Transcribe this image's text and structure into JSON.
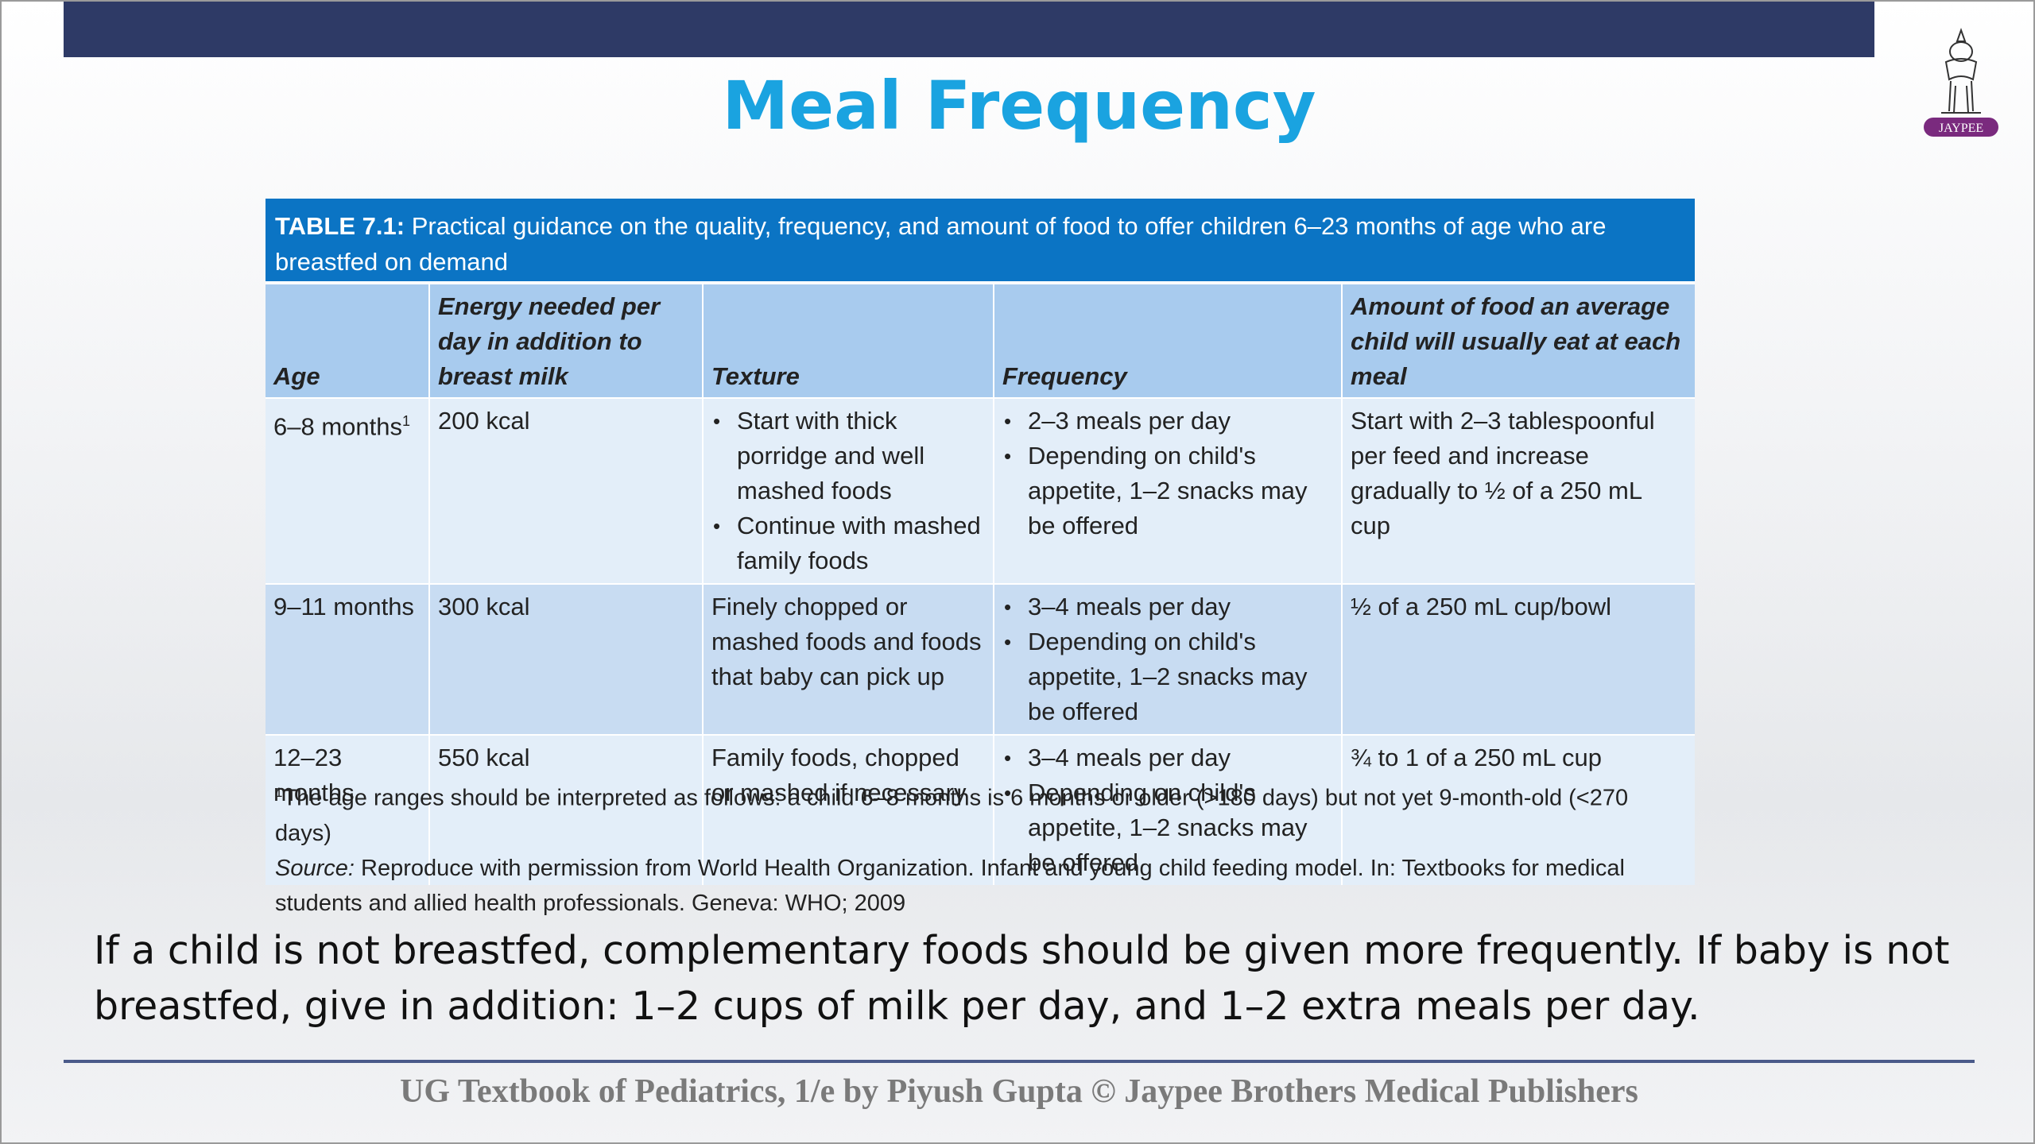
{
  "slide": {
    "title": "Meal Frequency",
    "logo_text": "JAYPEE",
    "note": "If a child is not breastfed, complementary foods should be given more frequently. If baby is not breastfed, give in addition: 1–2 cups of milk per day, and 1–2 extra meals per day.",
    "footer": "UG Textbook of Pediatrics, 1/e by Piyush Gupta © Jaypee Brothers Medical Publishers"
  },
  "colors": {
    "top_bar": "#2e3a66",
    "title": "#1aa3e0",
    "caption_bg": "#0b74c4",
    "header_bg": "#a8cbee"
  },
  "table": {
    "caption_label": "TABLE 7.1:",
    "caption_text": "Practical guidance on the quality, frequency, and amount of food to offer children 6–23 months of age who are breastfed on demand",
    "headers": {
      "age": "Age",
      "energy": "Energy needed per day in addition to breast milk",
      "texture": "Texture",
      "frequency": "Frequency",
      "amount": "Amount of food an average child will usually eat at each meal"
    },
    "rows": [
      {
        "age": "6–8 months",
        "age_sup": "1",
        "energy": "200 kcal",
        "texture": [
          "Start with thick porridge and well mashed foods",
          "Continue with mashed family foods"
        ],
        "frequency": [
          "2–3 meals per day",
          "Depending on child's appetite, 1–2 snacks may be offered"
        ],
        "amount": "Start with 2–3 tablespoonful per feed and increase gradually to ½ of a 250 mL cup"
      },
      {
        "age": "9–11 months",
        "energy": "300 kcal",
        "texture": "Finely chopped or mashed foods and foods that baby can pick up",
        "frequency": [
          "3–4 meals per day",
          "Depending on child's appetite, 1–2 snacks may be offered"
        ],
        "amount": "½ of a 250 mL cup/bowl"
      },
      {
        "age": "12–23 months",
        "energy": "550 kcal",
        "texture": "Family foods, chopped or mashed if necessary",
        "frequency": [
          "3–4 meals per day",
          "Depending on child's appetite, 1–2 snacks may be offered"
        ],
        "amount": "¾ to 1 of a 250 mL cup"
      }
    ],
    "footnote_sup": "1",
    "footnote": "The age ranges should be interpreted as follows: a child 6–8 months is 6 months or older (>180 days) but not yet 9-month-old (<270 days)",
    "source_label": "Source:",
    "source_text": "Reproduce with permission from World Health Organization. Infant and young child feeding model. In: Textbooks for medical students and allied health professionals. Geneva: WHO; 2009"
  }
}
